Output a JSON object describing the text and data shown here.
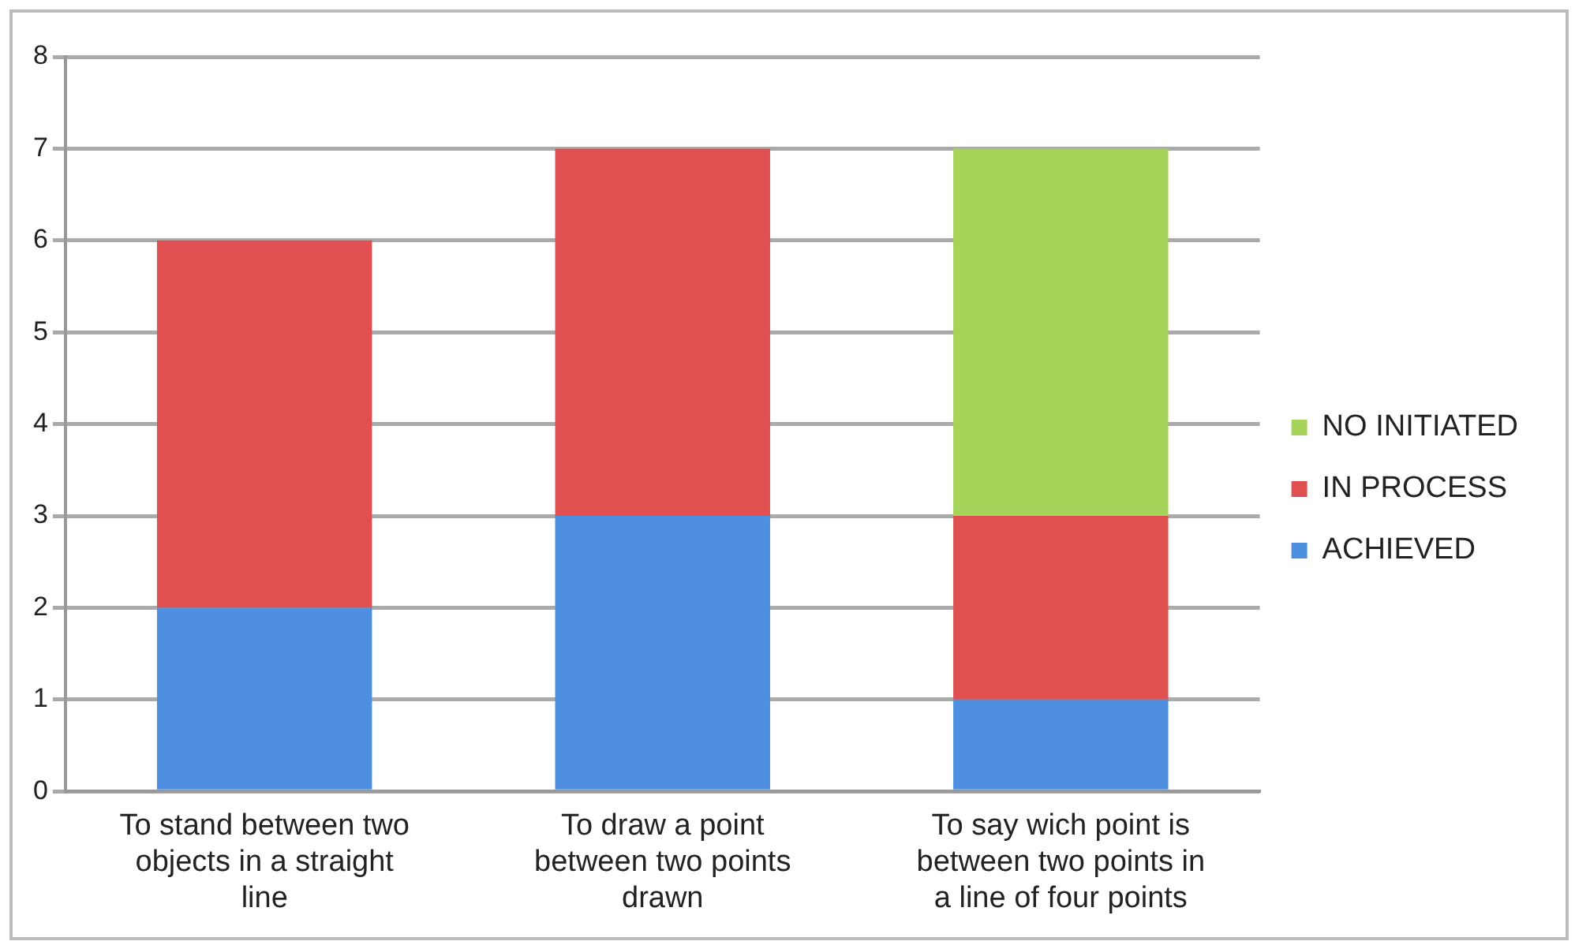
{
  "chart_data": {
    "type": "bar",
    "stacked": true,
    "categories": [
      "To stand between two objects in a straight line",
      "To draw a point between two points drawn",
      "To say wich point is between two points in a line of four points"
    ],
    "series": [
      {
        "name": "ACHIEVED",
        "color": "#4f8fdf",
        "values": [
          2,
          3,
          1
        ]
      },
      {
        "name": "IN PROCESS",
        "color": "#e05050",
        "values": [
          4,
          4,
          2
        ]
      },
      {
        "name": "NO INITIATED",
        "color": "#a6d45a",
        "values": [
          null,
          null,
          4
        ]
      }
    ],
    "ylim": [
      0,
      8
    ],
    "yticks": [
      0,
      1,
      2,
      3,
      4,
      5,
      6,
      7,
      8
    ],
    "grid": "y",
    "legend": "right"
  }
}
